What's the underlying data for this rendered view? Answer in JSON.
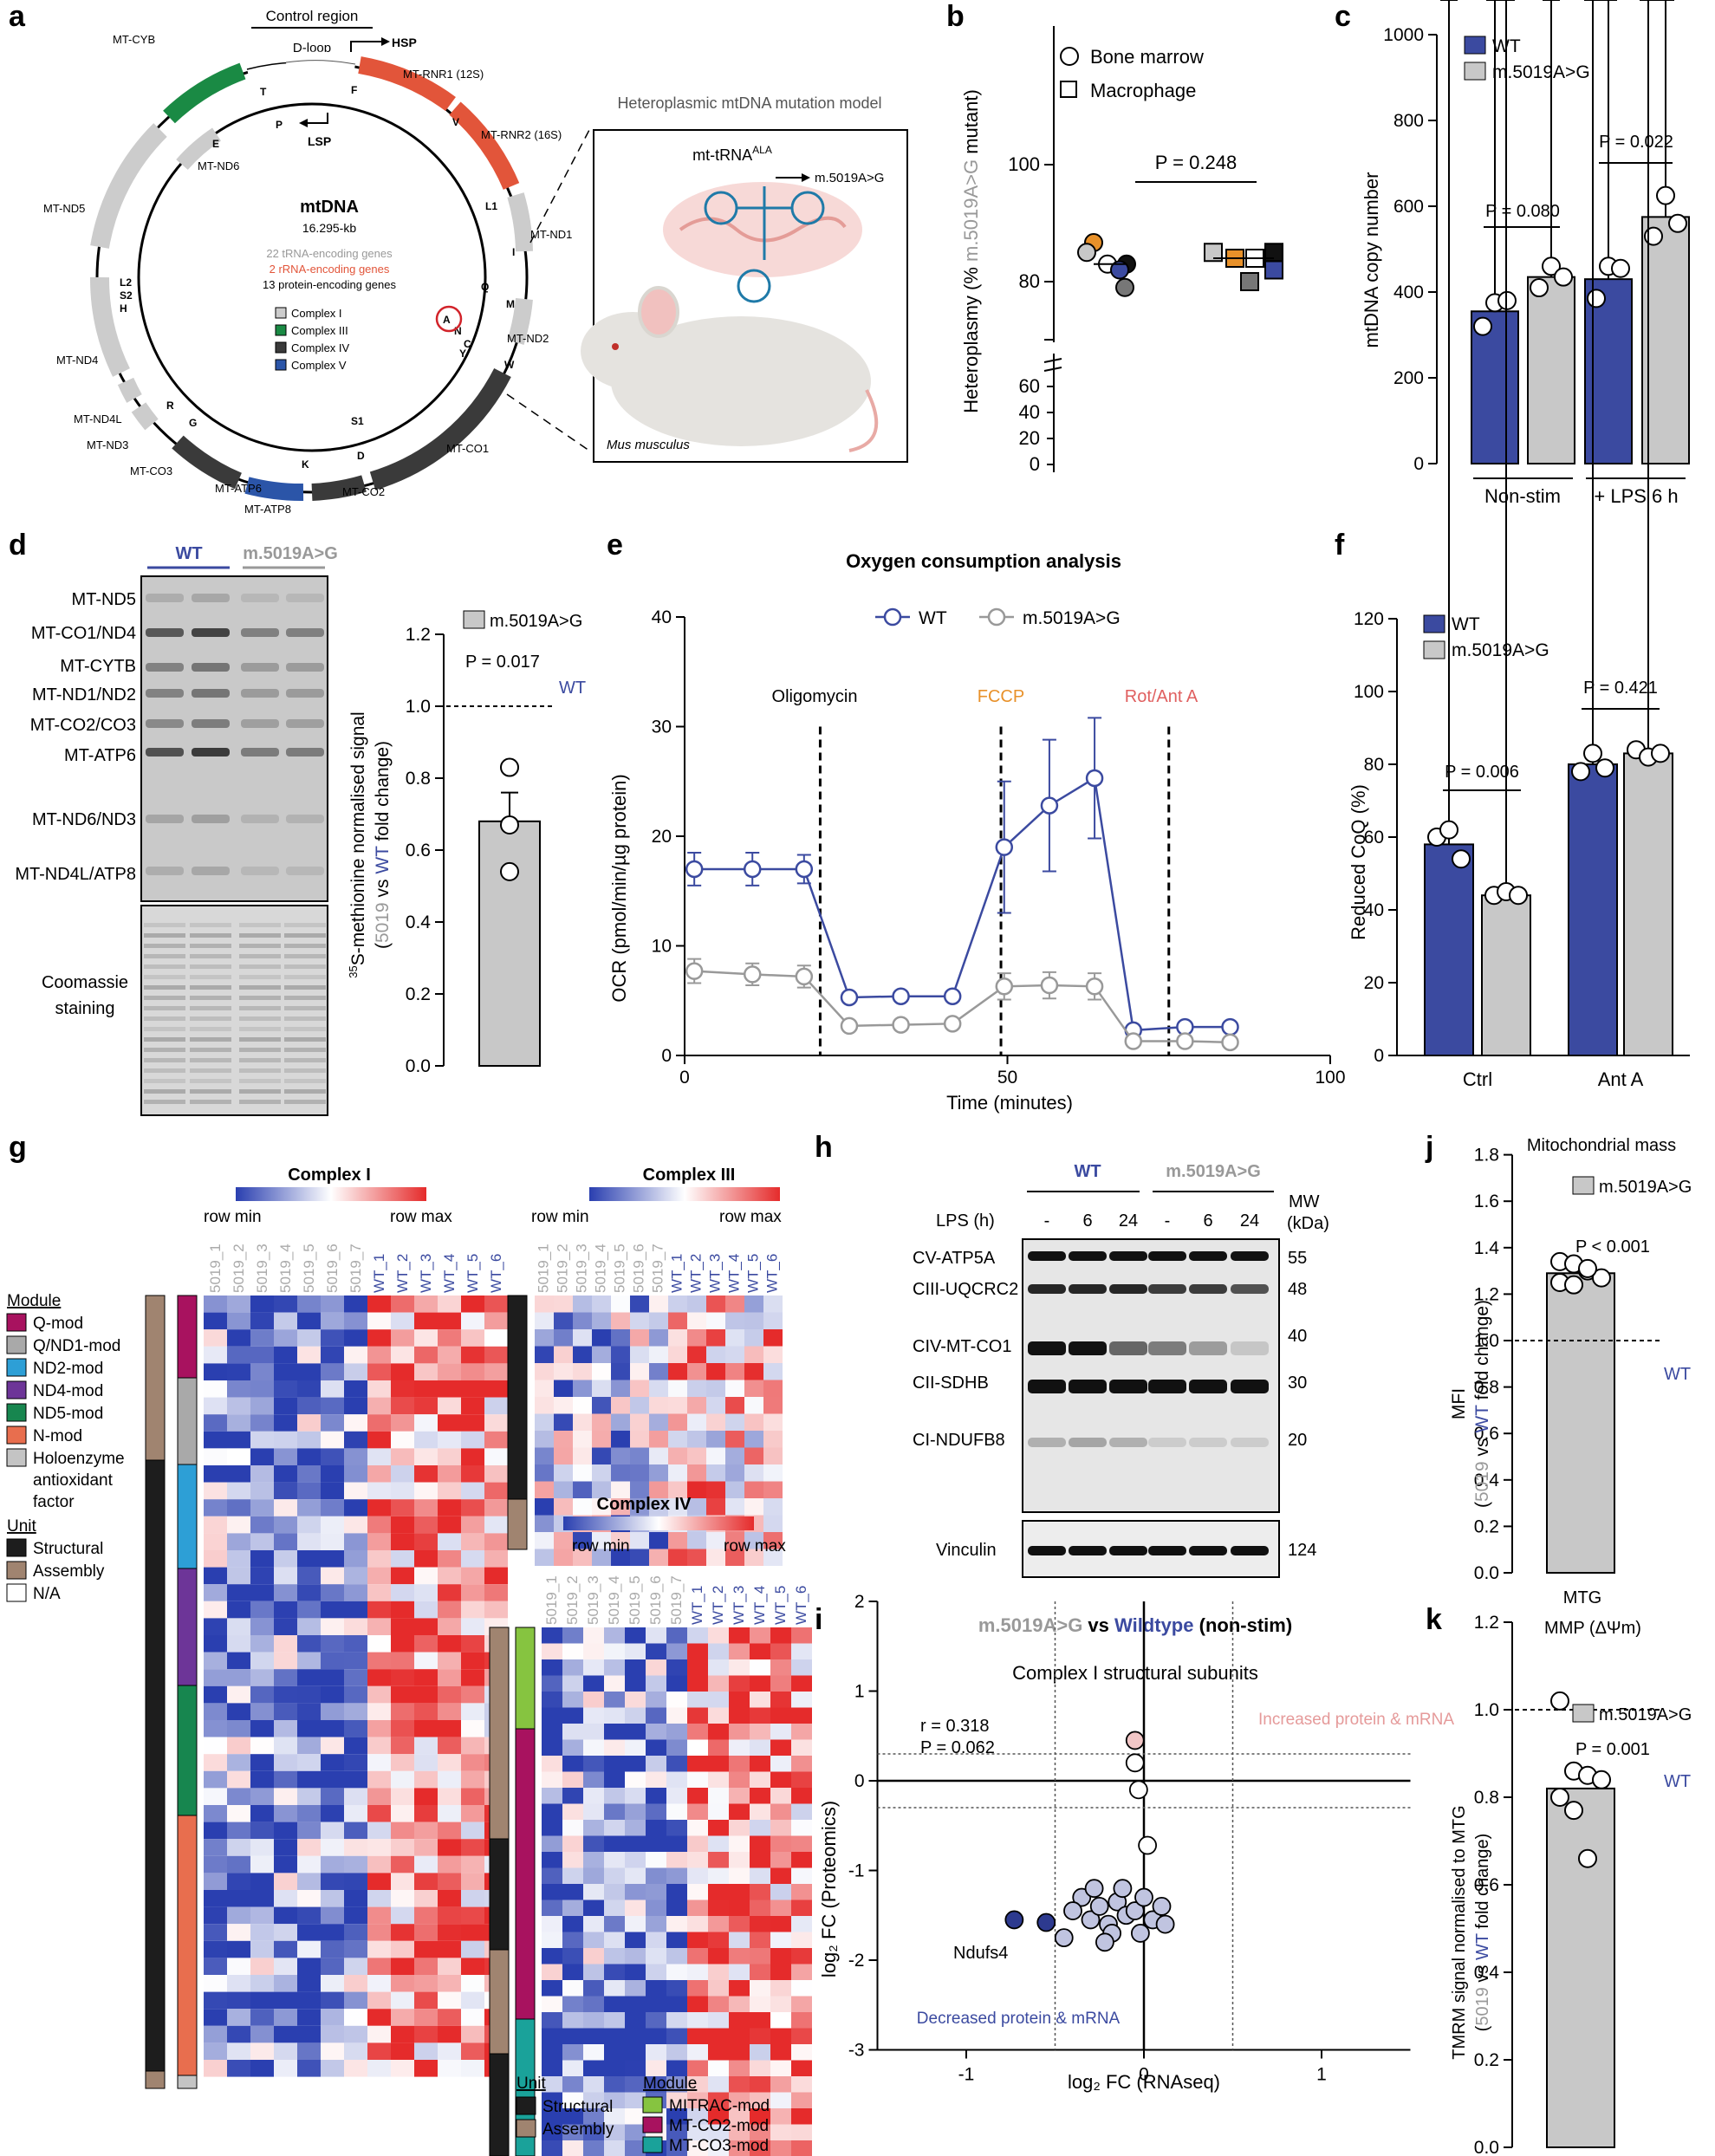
{
  "colors": {
    "wt": "#3b4aa0",
    "mut": "#c8c8c8",
    "orange": "#e2553a",
    "green": "#1a8a44",
    "dark": "#3a3a3a",
    "blue": "#2b55a8",
    "grey": "#c7c7c7",
    "red_text": "#e05a3a",
    "fccp": "#e8912a",
    "rot": "#e06060",
    "lightblue": "#c0c4e0"
  },
  "panels": [
    "a",
    "b",
    "c",
    "d",
    "e",
    "f",
    "g",
    "h",
    "i",
    "j",
    "k"
  ],
  "a": {
    "control_region": "Control region",
    "dloop": "D-loop",
    "hsp": "HSP",
    "lsp": "LSP",
    "title": "mtDNA",
    "size": "16.295-kb",
    "line_trna": "22 tRNA-encoding genes",
    "line_rrna": "2 rRNA-encoding genes",
    "line_prot": "13 protein-encoding genes",
    "legend": [
      "Complex I",
      "Complex III",
      "Complex IV",
      "Complex V"
    ],
    "genes": [
      "MT-CYB",
      "MT-RNR1 (12S)",
      "MT-RNR2 (16S)",
      "MT-ND6",
      "MT-ND5",
      "MT-ND1",
      "MT-ND2",
      "MT-ND4",
      "MT-ND4L",
      "MT-ND3",
      "MT-CO3",
      "MT-ATP6",
      "MT-ATP8",
      "MT-CO2",
      "MT-CO1"
    ],
    "trnas": [
      "T",
      "P",
      "F",
      "V",
      "E",
      "L1",
      "I",
      "Q",
      "M",
      "A",
      "N",
      "C",
      "Y",
      "W",
      "S2",
      "L2",
      "H",
      "R",
      "G",
      "K",
      "D",
      "S1"
    ],
    "model_title": "Heteroplasmic mtDNA mutation model",
    "trna_label": "mt-tRNA",
    "trna_sup": "ALA",
    "mutation": "m.5019A>G",
    "species": "Mus musculus"
  },
  "b": {
    "legend": [
      "Bone marrow",
      "Macrophage"
    ],
    "ylabel_pre": "Heteroplasmy (% ",
    "ylabel_mut": "m.5019A>G",
    "ylabel_post": " mutant)",
    "pvalue": "P = 0.248",
    "yticks_upper": [
      "100",
      "80"
    ],
    "yticks_lower": [
      "60",
      "40",
      "20",
      "0"
    ]
  },
  "c": {
    "legend": [
      "WT",
      "m.5019A>G"
    ],
    "ylabel": "mtDNA copy number",
    "categories": [
      "Non-stim",
      "+ LPS 6 h"
    ],
    "pvalues": [
      "P = 0.080",
      "P = 0.022"
    ],
    "yticks": [
      "0",
      "200",
      "400",
      "600",
      "800",
      "1000"
    ]
  },
  "d": {
    "wt": "WT",
    "mut": "m.5019A>G",
    "bands": [
      "MT-ND5",
      "MT-CO1/ND4",
      "MT-CYTB",
      "MT-ND1/ND2",
      "MT-CO2/CO3",
      "MT-ATP6",
      "MT-ND6/ND3",
      "MT-ND4L/ATP8"
    ],
    "coomassie": [
      "Coomassie",
      "staining"
    ],
    "legend": "m.5019A>G",
    "pvalue": "P = 0.017",
    "wt_line": "WT",
    "ylabel_sup": "35",
    "ylabel1": "S-methionine normalised signal",
    "ylabel2_open": "(",
    "ylabel2_5019": "5019",
    "ylabel2_vs": " vs ",
    "ylabel2_wt": "WT",
    "ylabel2_tail": " fold change)",
    "yticks": [
      "0.0",
      "0.2",
      "0.4",
      "0.6",
      "0.8",
      "1.0",
      "1.2"
    ]
  },
  "e": {
    "title": "Oxygen consumption analysis",
    "legend": [
      "WT",
      "m.5019A>G"
    ],
    "injections": [
      "Oligomycin",
      "FCCP",
      "Rot/Ant A"
    ],
    "ylabel": "OCR (pmol/min/µg protein)",
    "xlabel": "Time (minutes)",
    "xticks": [
      "0",
      "50",
      "100"
    ],
    "yticks": [
      "0",
      "10",
      "20",
      "30",
      "40"
    ]
  },
  "f": {
    "legend": [
      "WT",
      "m.5019A>G"
    ],
    "ylabel": "Reduced CoQ (%)",
    "categories": [
      "Ctrl",
      "Ant A"
    ],
    "pvalues": [
      "P = 0.006",
      "P = 0.421"
    ],
    "yticks": [
      "0",
      "20",
      "40",
      "60",
      "80",
      "100",
      "120"
    ]
  },
  "g": {
    "c1": "Complex I",
    "c3": "Complex III",
    "c4": "Complex IV",
    "rowmin": "row min",
    "rowmax": "row max",
    "mut_cols": [
      "5019_1",
      "5019_2",
      "5019_3",
      "5019_4",
      "5019_5",
      "5019_6",
      "5019_7"
    ],
    "wt_cols": [
      "WT_1",
      "WT_2",
      "WT_3",
      "WT_4",
      "WT_5",
      "WT_6"
    ],
    "module_title": "Module",
    "modules": [
      "Q-mod",
      "Q/ND1-mod",
      "ND2-mod",
      "ND4-mod",
      "ND5-mod",
      "N-mod",
      "Holoenzyme",
      "antioxidant",
      "factor"
    ],
    "unit_title": "Unit",
    "units": [
      "Structural",
      "Assembly",
      "N/A"
    ],
    "legend2_unit": "Unit",
    "legend2_units": [
      "Structural",
      "Assembly"
    ],
    "legend2_module": "Module",
    "legend2_modules": [
      "MITRAC-mod",
      "MT-CO2-mod",
      "MT-CO3-mod"
    ]
  },
  "h": {
    "wt": "WT",
    "mut": "m.5019A>G",
    "lps": "LPS (h)",
    "lanes": [
      "-",
      "6",
      "24",
      "-",
      "6",
      "24"
    ],
    "mw": "MW",
    "kda": "(kDa)",
    "proteins": [
      "CV-ATP5A",
      "CIII-UQCRC2",
      "CIV-MT-CO1",
      "CII-SDHB",
      "CI-NDUFB8",
      "Vinculin"
    ],
    "weights": [
      "55",
      "48",
      "40",
      "30",
      "20",
      "124"
    ]
  },
  "i": {
    "title_mut": "m.5019A>G",
    "title_vs": " vs ",
    "title_wt": "Wildtype",
    "title_tail": " (non-stim)",
    "subtitle": "Complex I structural subunits",
    "r": "r = 0.318",
    "p": "P = 0.062",
    "increased": "Increased protein & mRNA",
    "decreased": "Decreased protein & mRNA",
    "gene": "Ndufs4",
    "ylabel": "log₂ FC (Proteomics)",
    "xlabel": "log₂ FC (RNAseq)",
    "xticks": [
      "-1",
      "0",
      "1"
    ],
    "yticks": [
      "-3",
      "-2",
      "-1",
      "0",
      "1",
      "2"
    ]
  },
  "j": {
    "title": "Mitochondrial mass",
    "legend": "m.5019A>G",
    "pvalue": "P < 0.001",
    "wt_line": "WT",
    "ylabel1": "MFI",
    "ylabel2_open": "(",
    "ylabel2_5019": "5019",
    "ylabel2_vs": " vs ",
    "ylabel2_wt": "WT",
    "ylabel2_tail": " fold change)",
    "xlabel": "MTG",
    "yticks": [
      "0.0",
      "0.2",
      "0.4",
      "0.6",
      "0.8",
      "1.0",
      "1.2",
      "1.4",
      "1.6",
      "1.8"
    ]
  },
  "k": {
    "title": "MMP (ΔΨm)",
    "legend": "m.5019A>G",
    "pvalue": "P = 0.001",
    "wt_line": "WT",
    "ylabel1": "TMRM signal normalised to MTG",
    "ylabel2_open": "(",
    "ylabel2_5019": "5019",
    "ylabel2_vs": " vs ",
    "ylabel2_wt": "WT",
    "ylabel2_tail": " fold change)",
    "yticks": [
      "0.0",
      "0.2",
      "0.4",
      "0.6",
      "0.8",
      "1.0",
      "1.2"
    ]
  },
  "chart_data": [
    {
      "panel": "b",
      "type": "scatter",
      "ylabel": "Heteroplasmy (% m.5019A>G mutant)",
      "pvalue": "P = 0.248",
      "series": [
        {
          "name": "Bone marrow",
          "values": [
            84,
            85,
            83,
            82,
            79,
            83
          ]
        },
        {
          "name": "Macrophage",
          "values": [
            85,
            84,
            82,
            85,
            80,
            84
          ]
        }
      ]
    },
    {
      "panel": "c",
      "type": "bar",
      "categories": [
        "Non-stim",
        "+ LPS 6 h"
      ],
      "ylabel": "mtDNA copy number",
      "ylim": [
        0,
        1000
      ],
      "series": [
        {
          "name": "WT",
          "values": [
            355,
            430
          ],
          "points": [
            [
              320,
              375,
              380
            ],
            [
              385,
              460,
              455
            ]
          ],
          "sem": [
            25,
            35
          ]
        },
        {
          "name": "m.5019A>G",
          "values": [
            435,
            575
          ],
          "points": [
            [
              410,
              460,
              435
            ],
            [
              530,
              625,
              560
            ]
          ],
          "sem": [
            18,
            25
          ]
        }
      ]
    },
    {
      "panel": "d",
      "type": "bar",
      "categories": [
        "m.5019A>G"
      ],
      "values": [
        0.68
      ],
      "sem": 0.08,
      "points": [
        0.83,
        0.67,
        0.54
      ],
      "reference": 1.0,
      "ylim": [
        0,
        1.2
      ]
    },
    {
      "panel": "e",
      "type": "line",
      "xlabel": "Time (minutes)",
      "ylabel": "OCR (pmol/min/µg protein)",
      "xlim": [
        0,
        100
      ],
      "ylim": [
        0,
        40
      ],
      "x": [
        0,
        9,
        17,
        24,
        32,
        40,
        48,
        55,
        62,
        68,
        76,
        83,
        91
      ],
      "series": [
        {
          "name": "WT",
          "values": [
            17,
            17,
            17,
            5.3,
            5.4,
            5.4,
            19,
            22.8,
            25.3,
            2.3,
            2.6,
            2.6,
            null
          ],
          "err": [
            1.5,
            1.5,
            1.3,
            0.4,
            0.4,
            0.4,
            6,
            6,
            5.5,
            0.3,
            0.3,
            0.3,
            null
          ]
        },
        {
          "name": "m.5019A>G",
          "values": [
            7.7,
            7.4,
            7.2,
            2.7,
            2.8,
            2.9,
            6.3,
            6.4,
            6.3,
            1.3,
            1.3,
            1.2,
            null
          ],
          "err": [
            1.1,
            1,
            1,
            0.3,
            0.3,
            0.3,
            1.2,
            1.2,
            1.2,
            0.2,
            0.2,
            0.2,
            null
          ]
        }
      ]
    },
    {
      "panel": "f",
      "type": "bar",
      "categories": [
        "Ctrl",
        "Ant A"
      ],
      "ylabel": "Reduced CoQ (%)",
      "ylim": [
        0,
        120
      ],
      "series": [
        {
          "name": "WT",
          "values": [
            58,
            80
          ],
          "points": [
            [
              60,
              62,
              54
            ],
            [
              78,
              83,
              79
            ]
          ],
          "sem": [
            2.5,
            2.5
          ]
        },
        {
          "name": "m.5019A>G",
          "values": [
            44,
            83
          ],
          "points": [
            [
              44,
              45,
              44
            ],
            [
              84,
              82,
              83
            ]
          ],
          "sem": [
            0.5,
            0.7
          ]
        }
      ]
    },
    {
      "panel": "i",
      "type": "scatter",
      "xlabel": "log₂ FC (RNAseq)",
      "ylabel": "log₂ FC (Proteomics)",
      "xlim": [
        -1.5,
        1.5
      ],
      "ylim": [
        -3,
        2
      ],
      "r": 0.318,
      "p": 0.062,
      "points": [
        [
          -0.05,
          0.45
        ],
        [
          -0.05,
          0.2
        ],
        [
          -0.03,
          -0.1
        ],
        [
          0.02,
          -0.72
        ],
        [
          -0.73,
          -1.55
        ],
        [
          -0.55,
          -1.58
        ],
        [
          -0.45,
          -1.75
        ],
        [
          -0.35,
          -1.3
        ],
        [
          -0.3,
          -1.55
        ],
        [
          -0.25,
          -1.4
        ],
        [
          -0.2,
          -1.6
        ],
        [
          -0.15,
          -1.35
        ],
        [
          -0.1,
          -1.5
        ],
        [
          -0.05,
          -1.45
        ],
        [
          0,
          -1.3
        ],
        [
          0.05,
          -1.55
        ],
        [
          0.1,
          -1.4
        ],
        [
          -0.28,
          -1.2
        ],
        [
          -0.18,
          -1.7
        ],
        [
          -0.12,
          -1.2
        ],
        [
          -0.02,
          -1.7
        ],
        [
          0.12,
          -1.6
        ],
        [
          -0.4,
          -1.45
        ],
        [
          -0.22,
          -1.8
        ]
      ]
    },
    {
      "panel": "j",
      "type": "bar",
      "categories": [
        "MTG"
      ],
      "values": [
        1.29
      ],
      "points": [
        1.34,
        1.33,
        1.3,
        1.27,
        1.25,
        1.24,
        1.31
      ],
      "reference": 1.0,
      "ylim": [
        0,
        1.8
      ]
    },
    {
      "panel": "k",
      "type": "bar",
      "categories": [
        "m.5019A>G"
      ],
      "values": [
        0.82
      ],
      "points": [
        1.02,
        0.86,
        0.85,
        0.84,
        0.8,
        0.77,
        0.66
      ],
      "reference": 1.0,
      "ylim": [
        0,
        1.2
      ]
    }
  ]
}
